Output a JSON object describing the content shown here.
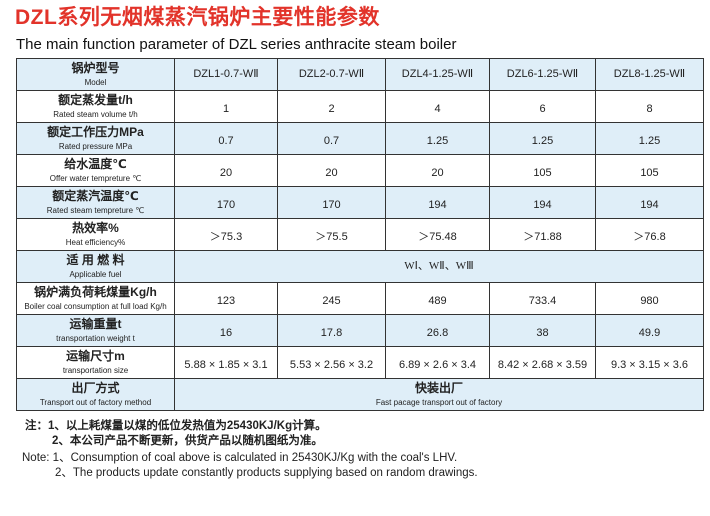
{
  "title": "DZL系列无烟煤蒸汽锅炉主要性能参数",
  "subtitle": "The main function parameter of DZL series anthracite steam boiler",
  "rows": [
    {
      "zh": "锅炉型号",
      "en": "Model",
      "values": [
        "DZL1-0.7-WⅡ",
        "DZL2-0.7-WⅡ",
        "DZL4-1.25-WⅡ",
        "DZL6-1.25-WⅡ",
        "DZL8-1.25-WⅡ"
      ]
    },
    {
      "zh": "额定蒸发量t/h",
      "en": "Rated steam volume  t/h",
      "values": [
        "1",
        "2",
        "4",
        "6",
        "8"
      ]
    },
    {
      "zh": "额定工作压力MPa",
      "en": "Rated pressure  MPa",
      "values": [
        "0.7",
        "0.7",
        "1.25",
        "1.25",
        "1.25"
      ]
    },
    {
      "zh": "给水温度℃",
      "en": "Offer water tempreture ℃",
      "values": [
        "20",
        "20",
        "20",
        "105",
        "105"
      ]
    },
    {
      "zh": "额定蒸汽温度℃",
      "en": "Rated steam tempreture ℃",
      "values": [
        "170",
        "170",
        "194",
        "194",
        "194"
      ]
    },
    {
      "zh": "热效率%",
      "en": "Heat efficiency%",
      "values": [
        "＞75.3",
        "＞75.5",
        "＞75.48",
        "＞71.88",
        "＞76.8"
      ]
    },
    {
      "zh": "适 用 燃 料",
      "en": "Applicable fuel",
      "merged": "WⅠ、WⅡ、WⅢ"
    },
    {
      "zh": "锅炉满负荷耗煤量Kg/h",
      "en": "Boiler coal consumption at full load Kg/h",
      "values": [
        "123",
        "245",
        "489",
        "733.4",
        "980"
      ]
    },
    {
      "zh": "运输重量t",
      "en": "transportation weight  t",
      "values": [
        "16",
        "17.8",
        "26.8",
        "38",
        "49.9"
      ]
    },
    {
      "zh": "运输尺寸m",
      "en": "transportation size",
      "values": [
        "5.88 × 1.85 × 3.1",
        "5.53 × 2.56 × 3.2",
        "6.89 × 2.6 × 3.4",
        "8.42 × 2.68 × 3.59",
        "9.3 × 3.15 × 3.6"
      ]
    },
    {
      "zh": "出厂方式",
      "en": "Transport out of factory method",
      "merged_zh": "快装出厂",
      "merged_en": "Fast pacage transport out of factory"
    }
  ],
  "notes": {
    "zh": [
      "注：1、以上耗煤量以煤的低位发热值为25430KJ/Kg计算。",
      "2、本公司产品不断更新，供货产品以随机图纸为准。"
    ],
    "en": [
      "Note: 1、Consumption of coal above is calculated in 25430KJ/Kg with the coal's LHV.",
      "2、The products update constantly products supplying based on random drawings."
    ]
  }
}
